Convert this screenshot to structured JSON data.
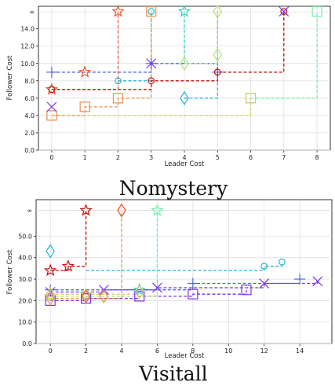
{
  "colors": {
    "purple": "#7b2ff7",
    "blue": "#4a68e0",
    "cyan": "#22b5d8",
    "turq": "#35d3c0",
    "green": "#6ef0a5",
    "lime": "#b5e07a",
    "yellow": "#d8c968",
    "orange": "#f0904f",
    "redorange": "#f25a2e",
    "red": "#c4110c"
  },
  "chart_data": [
    {
      "type": "scatter",
      "caption": "Nomystery",
      "xlabel": "Leader Cost",
      "ylabel": "Follower Cost",
      "xlim": [
        -0.4,
        8.4
      ],
      "ylim": [
        0,
        16.6
      ],
      "xticks": [
        0,
        1,
        2,
        3,
        4,
        5,
        6,
        7,
        8
      ],
      "yticks": [
        0,
        2,
        4,
        6,
        8,
        10,
        12,
        14
      ],
      "ytick_labels": [
        "0.0",
        "2.0",
        "4.0",
        "6.0",
        "8.0",
        "10.0",
        "12.0",
        "14.0"
      ],
      "inf_label": "∞",
      "inf_y": 15.95,
      "grid": true,
      "series": [
        {
          "color": "blue",
          "marker": "plus",
          "points": [
            [
              0,
              9
            ],
            [
              3,
              10
            ],
            [
              5,
              9
            ]
          ],
          "frontier": [
            [
              0,
              9
            ],
            [
              3,
              9
            ],
            [
              3,
              10
            ],
            [
              5,
              10
            ],
            [
              5,
              9
            ]
          ]
        },
        {
          "color": "cyan",
          "marker": "circle",
          "points": [
            [
              2,
              8
            ],
            [
              3,
              16
            ]
          ],
          "frontier": [
            [
              2,
              8
            ],
            [
              3,
              8
            ],
            [
              3,
              16
            ]
          ]
        },
        {
          "color": "cyan",
          "marker": "diamond",
          "points": [
            [
              4,
              6
            ]
          ],
          "frontier": [
            [
              4,
              6
            ],
            [
              5,
              6
            ],
            [
              5,
              16
            ]
          ]
        },
        {
          "color": "turq",
          "marker": "star",
          "points": [
            [
              4,
              16
            ]
          ],
          "frontier": [
            [
              4,
              10
            ],
            [
              4,
              16
            ]
          ]
        },
        {
          "color": "green",
          "marker": "square",
          "points": [
            [
              8,
              16
            ],
            [
              6,
              6
            ]
          ],
          "frontier": [
            [
              6,
              6
            ],
            [
              8,
              6
            ],
            [
              8,
              16
            ]
          ]
        },
        {
          "color": "lime",
          "marker": "diamond",
          "points": [
            [
              5,
              16
            ],
            [
              4,
              10
            ],
            [
              5,
              11
            ]
          ],
          "frontier": [
            [
              4,
              10
            ],
            [
              5,
              10
            ],
            [
              5,
              16
            ]
          ]
        },
        {
          "color": "yellow",
          "marker": "square",
          "points": [
            [
              0,
              4
            ],
            [
              6,
              6
            ]
          ],
          "frontier": [
            [
              0,
              4
            ],
            [
              6,
              4
            ],
            [
              6,
              6
            ]
          ]
        },
        {
          "color": "orange",
          "marker": "square",
          "points": [
            [
              0,
              4
            ],
            [
              1,
              5
            ],
            [
              2,
              6
            ],
            [
              3,
              16
            ]
          ],
          "frontier": [
            [
              0,
              4
            ],
            [
              1,
              4
            ],
            [
              1,
              5
            ],
            [
              2,
              5
            ],
            [
              2,
              6
            ],
            [
              3,
              6
            ],
            [
              3,
              16
            ]
          ]
        },
        {
          "color": "redorange",
          "marker": "star",
          "points": [
            [
              2,
              16
            ],
            [
              0,
              7
            ],
            [
              1,
              9
            ]
          ],
          "frontier": [
            [
              0,
              7
            ],
            [
              2,
              7
            ],
            [
              2,
              16
            ]
          ]
        },
        {
          "color": "red",
          "marker": "circle",
          "points": [
            [
              0,
              7
            ],
            [
              3,
              8
            ],
            [
              5,
              9
            ],
            [
              7,
              16
            ]
          ],
          "frontier": [
            [
              0,
              7
            ],
            [
              3,
              7
            ],
            [
              3,
              8
            ],
            [
              5,
              8
            ],
            [
              5,
              9
            ],
            [
              7,
              9
            ],
            [
              7,
              16
            ]
          ]
        },
        {
          "color": "purple",
          "marker": "x",
          "points": [
            [
              0,
              5
            ],
            [
              7,
              16
            ],
            [
              3,
              10
            ]
          ],
          "frontier": []
        }
      ]
    },
    {
      "type": "scatter",
      "caption": "Visitall",
      "xlabel": "Leader Cost",
      "ylabel": "Follower Cost",
      "xlim": [
        -0.8,
        15.8
      ],
      "ylim": [
        0,
        67
      ],
      "xticks": [
        0,
        2,
        4,
        6,
        8,
        10,
        12,
        14
      ],
      "yticks": [
        0,
        10,
        20,
        30,
        40,
        50
      ],
      "ytick_labels": [
        "0.0",
        "10.0",
        "20.0",
        "30.0",
        "40.0",
        "50.0"
      ],
      "inf_label": "∞",
      "inf_y": 62,
      "grid": true,
      "series": [
        {
          "color": "purple",
          "marker": "x",
          "points": [
            [
              0,
              24
            ],
            [
              3,
              25
            ],
            [
              6,
              26
            ],
            [
              12,
              28
            ],
            [
              15,
              29
            ]
          ],
          "frontier": [
            [
              0,
              24
            ],
            [
              3,
              24
            ],
            [
              3,
              25
            ],
            [
              6,
              25
            ],
            [
              6,
              26
            ],
            [
              12,
              26
            ],
            [
              12,
              28
            ],
            [
              15,
              28
            ],
            [
              15,
              29
            ]
          ]
        },
        {
          "color": "purple",
          "marker": "square",
          "points": [
            [
              0,
              20
            ],
            [
              2,
              21
            ],
            [
              5,
              22
            ],
            [
              8,
              23
            ],
            [
              11,
              25
            ]
          ],
          "frontier": [
            [
              0,
              20
            ],
            [
              2,
              20
            ],
            [
              2,
              21
            ],
            [
              5,
              21
            ],
            [
              5,
              22
            ],
            [
              8,
              22
            ],
            [
              8,
              23
            ],
            [
              11,
              23
            ],
            [
              11,
              25
            ]
          ]
        },
        {
          "color": "blue",
          "marker": "plus",
          "points": [
            [
              0,
              25
            ],
            [
              8,
              28
            ],
            [
              14,
              30
            ]
          ],
          "frontier": [
            [
              0,
              25
            ],
            [
              8,
              25
            ],
            [
              8,
              28
            ],
            [
              14,
              28
            ]
          ]
        },
        {
          "color": "cyan",
          "marker": "circle",
          "points": [
            [
              12,
              36
            ],
            [
              13,
              38
            ]
          ],
          "frontier": [
            [
              2,
              34
            ],
            [
              12,
              34
            ],
            [
              12,
              36
            ],
            [
              13,
              36
            ],
            [
              13,
              38
            ]
          ]
        },
        {
          "color": "cyan",
          "marker": "diamond",
          "points": [
            [
              0,
              43
            ]
          ],
          "frontier": []
        },
        {
          "color": "turq",
          "marker": "star",
          "points": [
            [
              5,
              25
            ]
          ],
          "frontier": []
        },
        {
          "color": "green",
          "marker": "star",
          "points": [
            [
              6,
              62
            ]
          ],
          "frontier": [
            [
              6,
              26
            ],
            [
              6,
              62
            ]
          ]
        },
        {
          "color": "lime",
          "marker": "star",
          "points": [
            [
              0,
              22
            ],
            [
              2,
              23
            ]
          ],
          "frontier": [
            [
              0,
              22
            ],
            [
              6,
              22
            ],
            [
              6,
              26
            ]
          ]
        },
        {
          "color": "yellow",
          "marker": "diamond",
          "points": [
            [
              0,
              23
            ],
            [
              3,
              22
            ],
            [
              5,
              24
            ]
          ],
          "frontier": [
            [
              0,
              23
            ],
            [
              5,
              23
            ]
          ]
        },
        {
          "color": "orange",
          "marker": "diamond",
          "points": [
            [
              0,
              21
            ],
            [
              3,
              22
            ],
            [
              4,
              62
            ]
          ],
          "frontier": [
            [
              0,
              21
            ],
            [
              4,
              21
            ],
            [
              4,
              62
            ]
          ]
        },
        {
          "color": "redorange",
          "marker": "diamond",
          "points": [
            [
              2,
              22
            ],
            [
              4,
              62
            ]
          ],
          "frontier": []
        },
        {
          "color": "red",
          "marker": "star",
          "points": [
            [
              0,
              34
            ],
            [
              1,
              36
            ],
            [
              2,
              62
            ]
          ],
          "frontier": [
            [
              0,
              34
            ],
            [
              1,
              34
            ],
            [
              1,
              36
            ],
            [
              2,
              36
            ],
            [
              2,
              62
            ]
          ]
        }
      ]
    }
  ]
}
